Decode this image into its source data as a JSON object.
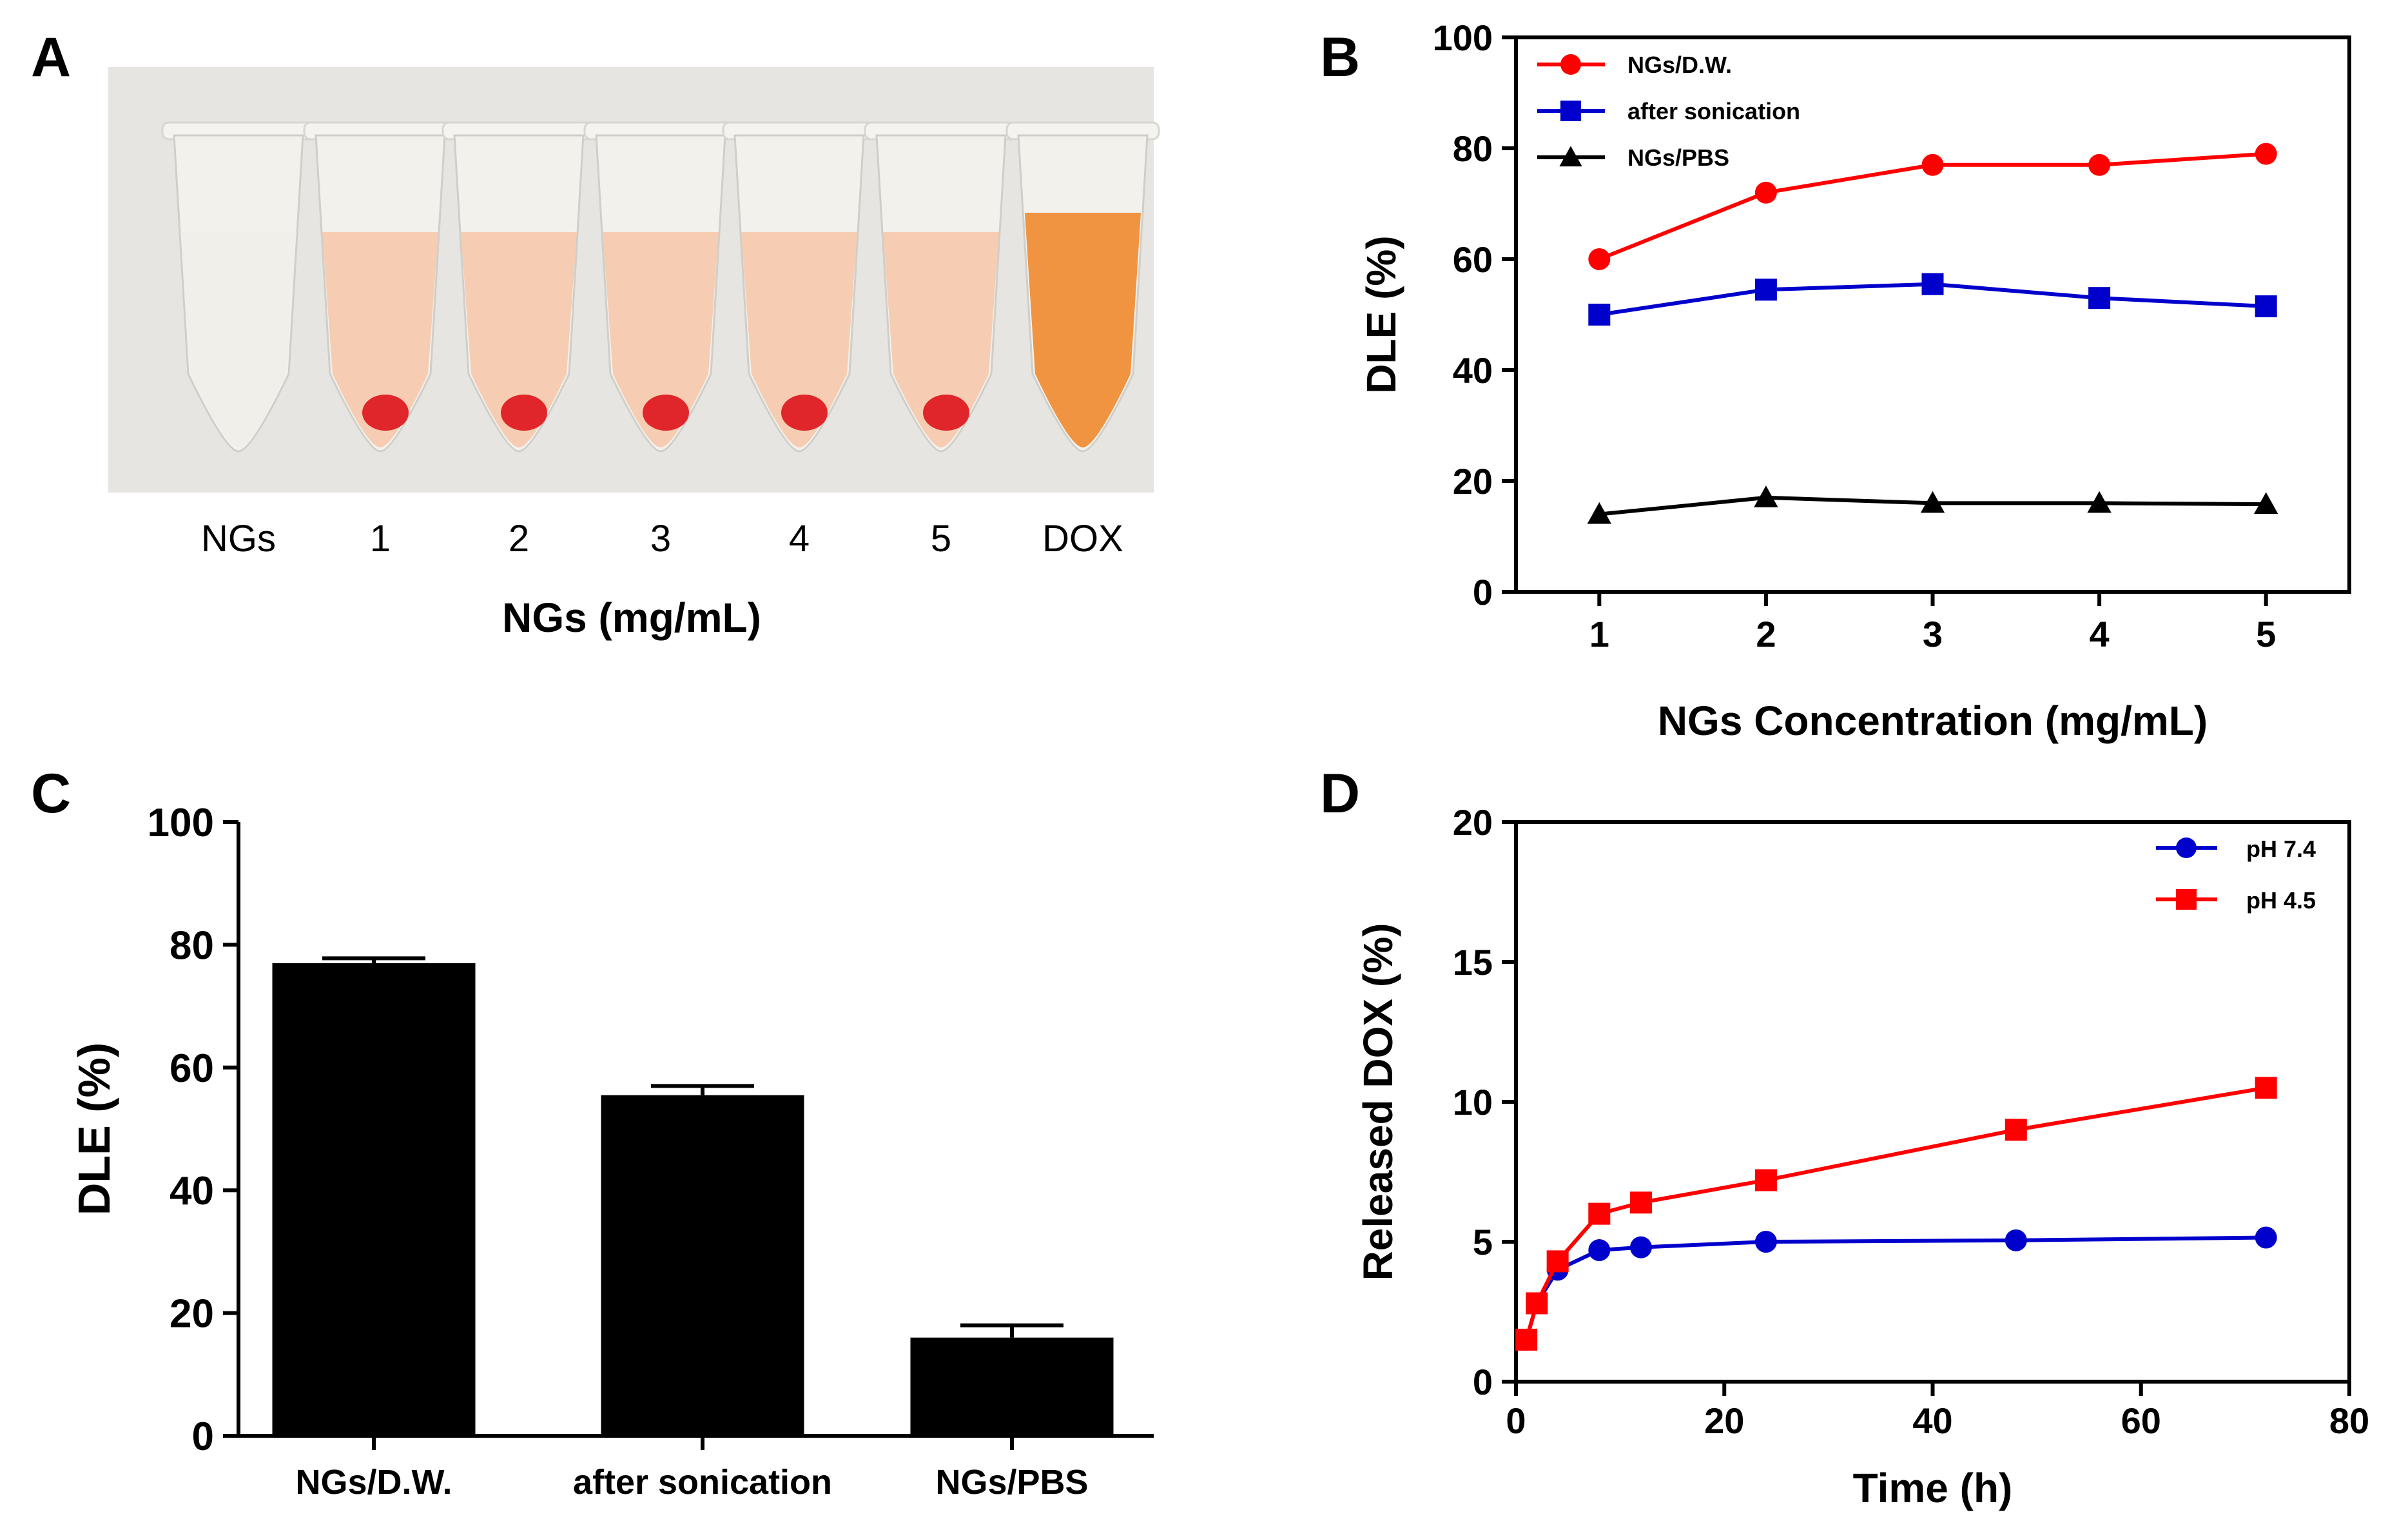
{
  "panels": {
    "A": {
      "label": "A"
    },
    "B": {
      "label": "B"
    },
    "C": {
      "label": "C"
    },
    "D": {
      "label": "D"
    }
  },
  "photo": {
    "tube_labels": [
      "NGs",
      "1",
      "2",
      "3",
      "4",
      "5",
      "DOX"
    ],
    "xlabel": "NGs (mg/mL)",
    "tube_colors": {
      "empty": "#efeeea",
      "loaded_liquid": "#f6c9ad",
      "pellet": "#e0262a",
      "dox_liquid": "#f0892f"
    }
  },
  "chart_data": [
    {
      "id": "B",
      "type": "line",
      "title": "",
      "xlabel": "NGs Concentration (mg/mL)",
      "ylabel": "DLE (%)",
      "x": [
        1,
        2,
        3,
        4,
        5
      ],
      "xticks": [
        "1",
        "2",
        "3",
        "4",
        "5"
      ],
      "xlim": [
        0.5,
        5.5
      ],
      "ylim": [
        0,
        100
      ],
      "yticks": [
        "0",
        "20",
        "40",
        "60",
        "80",
        "100"
      ],
      "legend_position": "top-left",
      "series": [
        {
          "name": "NGs/D.W.",
          "color": "#ff0000",
          "marker": "circle",
          "values": [
            60,
            72,
            77,
            77,
            79
          ]
        },
        {
          "name": "after sonication",
          "color": "#0000cc",
          "marker": "square",
          "values": [
            50,
            54.5,
            55.5,
            53,
            51.5
          ]
        },
        {
          "name": "NGs/PBS",
          "color": "#000000",
          "marker": "triangle",
          "values": [
            14,
            17,
            16,
            16,
            15.8
          ]
        }
      ]
    },
    {
      "id": "C",
      "type": "bar",
      "title": "",
      "xlabel": "",
      "ylabel": "DLE (%)",
      "categories": [
        "NGs/D.W.",
        "after sonication",
        "NGs/PBS"
      ],
      "values": [
        77,
        55.5,
        16
      ],
      "errors": [
        0.8,
        1.5,
        2
      ],
      "ylim": [
        0,
        100
      ],
      "yticks": [
        "0",
        "20",
        "40",
        "60",
        "80",
        "100"
      ],
      "bar_color": "#000000"
    },
    {
      "id": "D",
      "type": "line",
      "title": "",
      "xlabel": "Time (h)",
      "ylabel": "Released DOX (%)",
      "xlim": [
        0,
        80
      ],
      "ylim": [
        0,
        20
      ],
      "xticks": [
        "0",
        "20",
        "40",
        "60",
        "80"
      ],
      "yticks": [
        "0",
        "5",
        "10",
        "15",
        "20"
      ],
      "legend_position": "top-right",
      "series": [
        {
          "name": "pH 7.4",
          "color": "#0000cc",
          "marker": "circle",
          "x": [
            1,
            2,
            4,
            8,
            12,
            24,
            48,
            72
          ],
          "values": [
            1.5,
            2.8,
            4.0,
            4.7,
            4.8,
            5.0,
            5.05,
            5.15
          ]
        },
        {
          "name": "pH 4.5",
          "color": "#ff0000",
          "marker": "square",
          "x": [
            1,
            2,
            4,
            8,
            12,
            24,
            48,
            72
          ],
          "values": [
            1.5,
            2.8,
            4.3,
            6.0,
            6.4,
            7.2,
            9.0,
            10.5
          ]
        }
      ]
    }
  ]
}
